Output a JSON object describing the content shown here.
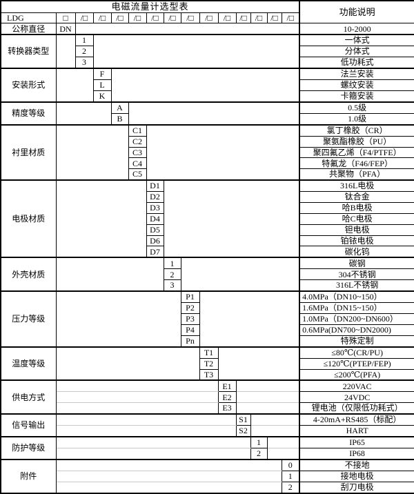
{
  "table": {
    "title": "电磁流量计选型表",
    "function_column_header": "功能说明",
    "model_code_row": {
      "prefix": "LDG",
      "first_box": "□",
      "slot": "/□",
      "slot_count": 13
    },
    "groups": [
      {
        "category": "公称直径",
        "code_col": 0,
        "codes": [
          "DN"
        ],
        "descriptions": [
          "10-2000"
        ]
      },
      {
        "category": "转换器类型",
        "code_col": 1,
        "codes": [
          "1",
          "2",
          "3"
        ],
        "descriptions": [
          "一体式",
          "分体式",
          "低功耗式"
        ]
      },
      {
        "category": "安装形式",
        "code_col": 2,
        "codes": [
          "F",
          "L",
          "K"
        ],
        "descriptions": [
          "法兰安装",
          "螺纹安装",
          "卡箍安装"
        ]
      },
      {
        "category": "精度等级",
        "code_col": 3,
        "codes": [
          "A",
          "B"
        ],
        "descriptions": [
          "0.5级",
          "1.0级"
        ]
      },
      {
        "category": "衬里材质",
        "code_col": 4,
        "codes": [
          "C1",
          "C2",
          "C3",
          "C4",
          "C5"
        ],
        "descriptions": [
          "氯丁橡胶（CR）",
          "聚氨酯橡胶（PU）",
          "聚四氟乙烯（F4/PTFE）",
          "特氟龙（F46/FEP）",
          "共聚物（PFA）"
        ]
      },
      {
        "category": "电极材质",
        "code_col": 5,
        "codes": [
          "D1",
          "D2",
          "D3",
          "D4",
          "D5",
          "D6",
          "D7"
        ],
        "descriptions": [
          "316L电极",
          "钛合金",
          "哈B电极",
          "哈C电极",
          "钽电极",
          "铂铱电极",
          "碳化钨"
        ]
      },
      {
        "category": "外壳材质",
        "code_col": 6,
        "codes": [
          "1",
          "2",
          "3"
        ],
        "descriptions": [
          "碳钢",
          "304不锈钢",
          "316L不锈钢"
        ]
      },
      {
        "category": "压力等级",
        "code_col": 7,
        "codes": [
          "P1",
          "P2",
          "P3",
          "P4",
          "Pn"
        ],
        "descriptions": [
          "4.0MPa（DN10~150）",
          "1.6MPa（DN15~150）",
          "1.0MPa（DN200~DN600）",
          "0.6MPa(DN700~DN2000)",
          "特殊定制"
        ],
        "desc_align": [
          "left",
          "left",
          "left",
          "left",
          "center"
        ]
      },
      {
        "category": "温度等级",
        "code_col": 8,
        "codes": [
          "T1",
          "T2",
          "T3"
        ],
        "descriptions": [
          "≤80℃(CR/PU)",
          "≤120℃(PTEP/FEP)",
          "≤200℃(PFA)"
        ]
      },
      {
        "category": "供电方式",
        "code_col": 9,
        "codes": [
          "E1",
          "E2",
          "E3"
        ],
        "descriptions": [
          "220VAC",
          "24VDC",
          "锂电池（仅限低功耗式）"
        ],
        "gridlines": true
      },
      {
        "category": "信号输出",
        "code_col": 10,
        "codes": [
          "S1",
          "S2"
        ],
        "descriptions": [
          "4-20mA+RS485（标配）",
          "HART"
        ],
        "gridlines": true
      },
      {
        "category": "防护等级",
        "code_col": 11,
        "codes": [
          "1",
          "2"
        ],
        "descriptions": [
          "IP65",
          "IP68"
        ],
        "gridlines": true
      },
      {
        "category": "附件",
        "code_col": 13,
        "codes": [
          "0",
          "1",
          "2"
        ],
        "descriptions": [
          "不接地",
          "接地电极",
          "刮刀电极"
        ],
        "gridlines": true
      }
    ]
  }
}
